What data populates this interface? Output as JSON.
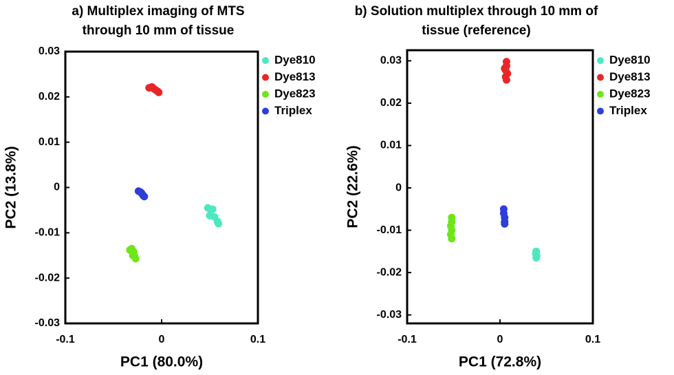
{
  "chart_data": [
    {
      "type": "scatter",
      "title": "a) Multiplex imaging of MTS through 10 mm of tissue",
      "xlabel": "PC1  (80.0%)",
      "ylabel": "PC2  (13.8%)",
      "xlim": [
        -0.1,
        0.1
      ],
      "ylim": [
        -0.03,
        0.03
      ],
      "xticks": [
        -0.1,
        0,
        0.1
      ],
      "yticks": [
        -0.03,
        -0.02,
        -0.01,
        0,
        0.01,
        0.02,
        0.03
      ],
      "series": [
        {
          "name": "Dye810",
          "color": "#4ee8c0",
          "x": [
            0.048,
            0.051,
            0.053,
            0.05,
            0.055,
            0.058,
            0.059
          ],
          "y": [
            -0.0045,
            -0.005,
            -0.0048,
            -0.0062,
            -0.0065,
            -0.0075,
            -0.008
          ]
        },
        {
          "name": "Dye813",
          "color": "#e8262a",
          "x": [
            -0.013,
            -0.01,
            -0.008,
            -0.006,
            -0.004,
            -0.003
          ],
          "y": [
            0.022,
            0.0222,
            0.0218,
            0.0215,
            0.0212,
            0.021
          ]
        },
        {
          "name": "Dye823",
          "color": "#6ee61a",
          "x": [
            -0.033,
            -0.031,
            -0.029,
            -0.028,
            -0.027,
            -0.03
          ],
          "y": [
            -0.0138,
            -0.0135,
            -0.0142,
            -0.0152,
            -0.0157,
            -0.015
          ]
        },
        {
          "name": "Triplex",
          "color": "#2d3fd8",
          "x": [
            -0.024,
            -0.022,
            -0.02,
            -0.019,
            -0.018,
            -0.021
          ],
          "y": [
            -0.0008,
            -0.001,
            -0.0015,
            -0.0018,
            -0.002,
            -0.0012
          ]
        }
      ]
    },
    {
      "type": "scatter",
      "title": "b) Solution multiplex through 10 mm of tissue (reference)",
      "xlabel": "PC1  (72.8%)",
      "ylabel": "PC2  (22.6%)",
      "xlim": [
        -0.1,
        0.1
      ],
      "ylim": [
        -0.032,
        0.0325
      ],
      "xticks": [
        -0.1,
        0,
        0.1
      ],
      "yticks": [
        -0.03,
        -0.02,
        -0.01,
        0,
        0.01,
        0.02,
        0.03
      ],
      "series": [
        {
          "name": "Dye810",
          "color": "#4ee8c0",
          "x": [
            0.039,
            0.0385,
            0.0395,
            0.039
          ],
          "y": [
            -0.015,
            -0.0155,
            -0.016,
            -0.0165
          ]
        },
        {
          "name": "Dye813",
          "color": "#e8262a",
          "x": [
            0.007,
            0.007,
            0.006,
            0.008,
            0.006,
            0.007,
            0.005
          ],
          "y": [
            0.0298,
            0.0288,
            0.0278,
            0.027,
            0.0262,
            0.0255,
            0.0282
          ]
        },
        {
          "name": "Dye823",
          "color": "#6ee61a",
          "x": [
            -0.052,
            -0.052,
            -0.053,
            -0.052,
            -0.053,
            -0.052
          ],
          "y": [
            -0.007,
            -0.008,
            -0.009,
            -0.01,
            -0.011,
            -0.012
          ]
        },
        {
          "name": "Triplex",
          "color": "#2d3fd8",
          "x": [
            0.004,
            0.004,
            0.005,
            0.005,
            0.005
          ],
          "y": [
            -0.005,
            -0.006,
            -0.007,
            -0.008,
            -0.0085
          ]
        }
      ]
    }
  ]
}
